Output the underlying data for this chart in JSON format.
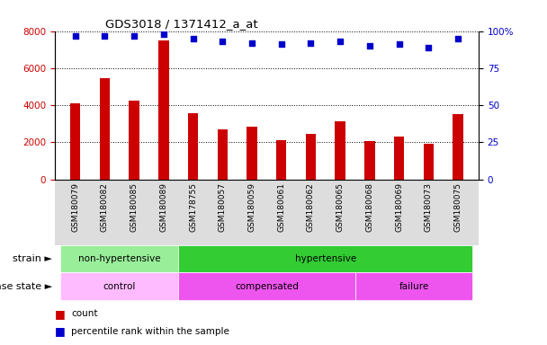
{
  "title": "GDS3018 / 1371412_a_at",
  "samples": [
    "GSM180079",
    "GSM180082",
    "GSM180085",
    "GSM180089",
    "GSM178755",
    "GSM180057",
    "GSM180059",
    "GSM180061",
    "GSM180062",
    "GSM180065",
    "GSM180068",
    "GSM180069",
    "GSM180073",
    "GSM180075"
  ],
  "counts": [
    4100,
    5450,
    4250,
    7500,
    3550,
    2700,
    2850,
    2100,
    2450,
    3150,
    2050,
    2300,
    1900,
    3500
  ],
  "percentiles": [
    97,
    97,
    97,
    98,
    95,
    93,
    92,
    91,
    92,
    93,
    90,
    91,
    89,
    95
  ],
  "bar_color": "#cc0000",
  "dot_color": "#0000cc",
  "ylim_left": [
    0,
    8000
  ],
  "ylim_right": [
    0,
    100
  ],
  "yticks_left": [
    0,
    2000,
    4000,
    6000,
    8000
  ],
  "yticks_right": [
    0,
    25,
    50,
    75,
    100
  ],
  "strain_groups": [
    {
      "label": "non-hypertensive",
      "start": 0,
      "end": 4,
      "color": "#99ee99"
    },
    {
      "label": "hypertensive",
      "start": 4,
      "end": 14,
      "color": "#33cc33"
    }
  ],
  "disease_groups": [
    {
      "label": "control",
      "start": 0,
      "end": 4,
      "color": "#ffaaff"
    },
    {
      "label": "compensated",
      "start": 4,
      "end": 10,
      "color": "#dd44dd"
    },
    {
      "label": "failure",
      "start": 10,
      "end": 14,
      "color": "#dd44dd"
    }
  ],
  "legend_count_color": "#cc0000",
  "legend_dot_color": "#0000cc",
  "background_color": "#ffffff",
  "tick_label_color_left": "#cc0000",
  "tick_label_color_right": "#0000cc",
  "xticklabel_bg": "#dddddd"
}
